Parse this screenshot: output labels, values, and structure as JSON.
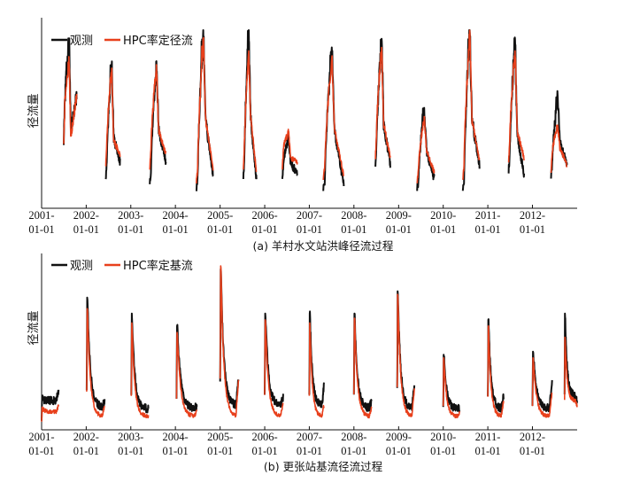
{
  "chart_data": [
    {
      "type": "line",
      "title": "",
      "caption": "(a) 羊村水文站洪峰径流过程",
      "ylabel": "径流量",
      "xlabel": "",
      "x_range": [
        "2001-01-01",
        "2013-01-01"
      ],
      "x_ticks": [
        {
          "top": "2001-",
          "bottom": "01-01"
        },
        {
          "top": "2002-",
          "bottom": "01-01"
        },
        {
          "top": "2003-",
          "bottom": "01-01"
        },
        {
          "top": "2004-",
          "bottom": "01-01"
        },
        {
          "top": "2005-",
          "bottom": "01-01"
        },
        {
          "top": "2006-",
          "bottom": "01-01"
        },
        {
          "top": "2007-",
          "bottom": "01-01"
        },
        {
          "top": "2008-",
          "bottom": "01-01"
        },
        {
          "top": "2009-",
          "bottom": "01-01"
        },
        {
          "top": "2010-",
          "bottom": "01-01"
        },
        {
          "top": "2011-",
          "bottom": "01-01"
        },
        {
          "top": "2012-",
          "bottom": "01-01"
        }
      ],
      "y_ticks": "none",
      "ylim": [
        0,
        1
      ],
      "grid": false,
      "legend": "top-left",
      "series": [
        {
          "name": "观测",
          "color": "#111111"
        },
        {
          "name": "HPC率定径流",
          "color": "#e8401c"
        }
      ],
      "events": [
        {
          "start": "2001-07-01",
          "end": "2001-10-15",
          "obs": [
            0.35,
            0.95,
            0.42,
            0.62
          ],
          "sim": [
            0.35,
            0.82,
            0.38,
            0.62
          ]
        },
        {
          "start": "2002-06-10",
          "end": "2002-10-05",
          "obs": [
            0.15,
            0.8,
            0.38,
            0.24
          ],
          "sim": [
            0.22,
            0.78,
            0.36,
            0.28
          ]
        },
        {
          "start": "2003-06-05",
          "end": "2003-10-15",
          "obs": [
            0.12,
            0.82,
            0.42,
            0.24
          ],
          "sim": [
            0.2,
            0.8,
            0.42,
            0.28
          ]
        },
        {
          "start": "2004-06-20",
          "end": "2004-11-05",
          "obs": [
            0.08,
            1.0,
            0.48,
            0.16
          ],
          "sim": [
            0.12,
            0.95,
            0.48,
            0.2
          ]
        },
        {
          "start": "2005-07-10",
          "end": "2005-10-25",
          "obs": [
            0.15,
            1.0,
            0.5,
            0.14
          ],
          "sim": [
            0.2,
            0.88,
            0.5,
            0.18
          ]
        },
        {
          "start": "2006-05-25",
          "end": "2006-09-25",
          "obs": [
            0.15,
            0.38,
            0.24,
            0.16
          ],
          "sim": [
            0.2,
            0.41,
            0.26,
            0.24
          ]
        },
        {
          "start": "2007-04-25",
          "end": "2007-10-10",
          "obs": [
            0.08,
            0.9,
            0.42,
            0.1
          ],
          "sim": [
            0.14,
            0.84,
            0.42,
            0.16
          ]
        },
        {
          "start": "2008-06-25",
          "end": "2008-10-25",
          "obs": [
            0.22,
            0.95,
            0.46,
            0.22
          ],
          "sim": [
            0.26,
            0.9,
            0.46,
            0.26
          ]
        },
        {
          "start": "2009-06-01",
          "end": "2009-10-20",
          "obs": [
            0.08,
            0.55,
            0.3,
            0.14
          ],
          "sim": [
            0.12,
            0.5,
            0.3,
            0.18
          ]
        },
        {
          "start": "2010-06-10",
          "end": "2010-10-25",
          "obs": [
            0.08,
            1.0,
            0.48,
            0.22
          ],
          "sim": [
            0.14,
            1.0,
            0.48,
            0.24
          ]
        },
        {
          "start": "2011-06-20",
          "end": "2011-10-25",
          "obs": [
            0.18,
            0.95,
            0.4,
            0.16
          ],
          "sim": [
            0.24,
            0.88,
            0.42,
            0.26
          ]
        },
        {
          "start": "2012-06-01",
          "end": "2012-10-10",
          "obs": [
            0.15,
            0.62,
            0.35,
            0.22
          ],
          "sim": [
            0.18,
            0.45,
            0.32,
            0.22
          ]
        }
      ]
    },
    {
      "type": "line",
      "title": "",
      "caption": "(b) 更张站基流径流过程",
      "ylabel": "径流量",
      "xlabel": "",
      "x_range": [
        "2001-01-01",
        "2013-01-01"
      ],
      "x_ticks": [
        {
          "top": "2001-",
          "bottom": "01-01"
        },
        {
          "top": "2002-",
          "bottom": "01-01"
        },
        {
          "top": "2003-",
          "bottom": "01-01"
        },
        {
          "top": "2004-",
          "bottom": "01-01"
        },
        {
          "top": "2005-",
          "bottom": "01-01"
        },
        {
          "top": "2006-",
          "bottom": "01-01"
        },
        {
          "top": "2007-",
          "bottom": "01-01"
        },
        {
          "top": "2008-",
          "bottom": "01-01"
        },
        {
          "top": "2009-",
          "bottom": "01-01"
        },
        {
          "top": "2010-",
          "bottom": "01-01"
        },
        {
          "top": "2011-",
          "bottom": "01-01"
        },
        {
          "top": "2012-",
          "bottom": "01-01"
        }
      ],
      "y_ticks": "none",
      "ylim": [
        0,
        1
      ],
      "grid": false,
      "legend": "top-left",
      "series": [
        {
          "name": "观测",
          "color": "#111111"
        },
        {
          "name": "HPC率定基流",
          "color": "#e8401c"
        }
      ],
      "events": [
        {
          "start": "2001-01-01",
          "end": "2001-05-20",
          "obs": [
            0.16,
            0.13,
            0.15,
            0.2
          ],
          "sim": [
            0.1,
            0.05,
            0.08,
            0.12
          ]
        },
        {
          "start": "2002-01-05",
          "end": "2002-06-01",
          "obs": [
            0.8,
            0.2,
            0.11,
            0.15
          ],
          "sim": [
            0.73,
            0.14,
            0.05,
            0.12
          ]
        },
        {
          "start": "2003-01-05",
          "end": "2003-05-25",
          "obs": [
            0.7,
            0.18,
            0.1,
            0.1
          ],
          "sim": [
            0.64,
            0.12,
            0.05,
            0.05
          ]
        },
        {
          "start": "2004-01-10",
          "end": "2004-06-25",
          "obs": [
            0.62,
            0.16,
            0.1,
            0.12
          ],
          "sim": [
            0.58,
            0.12,
            0.05,
            0.08
          ]
        },
        {
          "start": "2005-01-01",
          "end": "2005-06-01",
          "obs": [
            0.98,
            0.18,
            0.12,
            0.3
          ],
          "sim": [
            1.0,
            0.12,
            0.05,
            0.28
          ]
        },
        {
          "start": "2006-01-01",
          "end": "2006-06-01",
          "obs": [
            0.7,
            0.2,
            0.12,
            0.17
          ],
          "sim": [
            0.66,
            0.12,
            0.05,
            0.14
          ]
        },
        {
          "start": "2007-01-01",
          "end": "2007-05-01",
          "obs": [
            0.7,
            0.18,
            0.12,
            0.25
          ],
          "sim": [
            0.64,
            0.12,
            0.05,
            0.12
          ]
        },
        {
          "start": "2008-01-01",
          "end": "2008-05-25",
          "obs": [
            0.7,
            0.16,
            0.1,
            0.15
          ],
          "sim": [
            0.67,
            0.12,
            0.05,
            0.1
          ]
        },
        {
          "start": "2008-12-20",
          "end": "2009-05-10",
          "obs": [
            0.84,
            0.18,
            0.1,
            0.25
          ],
          "sim": [
            0.82,
            0.12,
            0.05,
            0.22
          ]
        },
        {
          "start": "2010-01-01",
          "end": "2010-05-15",
          "obs": [
            0.44,
            0.18,
            0.1,
            0.1
          ],
          "sim": [
            0.42,
            0.12,
            0.05,
            0.08
          ]
        },
        {
          "start": "2011-01-01",
          "end": "2011-05-10",
          "obs": [
            0.66,
            0.18,
            0.1,
            0.18
          ],
          "sim": [
            0.62,
            0.12,
            0.05,
            0.15
          ]
        },
        {
          "start": "2012-01-01",
          "end": "2012-06-10",
          "obs": [
            0.46,
            0.18,
            0.1,
            0.26
          ],
          "sim": [
            0.42,
            0.12,
            0.05,
            0.2
          ]
        },
        {
          "start": "2012-09-20",
          "end": "2012-12-31",
          "obs": [
            0.7,
            0.35,
            0.18,
            0.14
          ],
          "sim": [
            0.55,
            0.3,
            0.15,
            0.12
          ]
        }
      ]
    }
  ]
}
